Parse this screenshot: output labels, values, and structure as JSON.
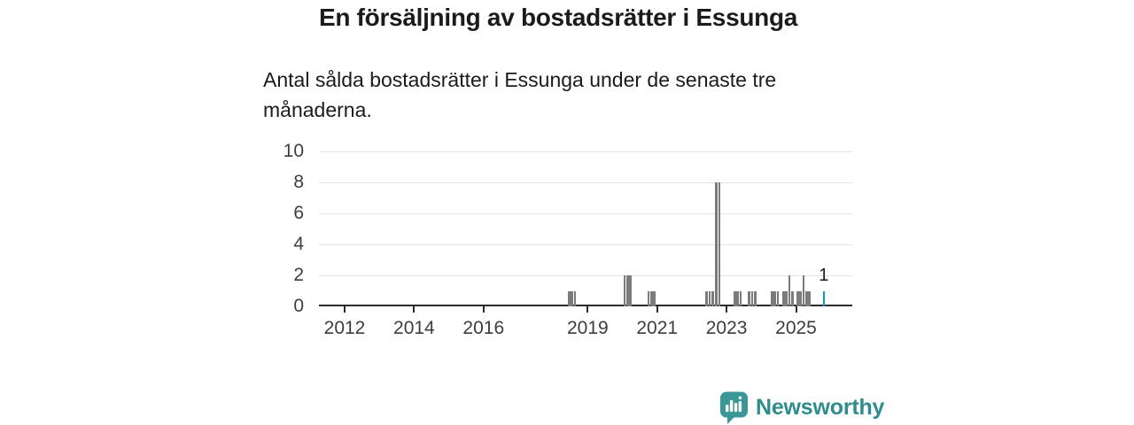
{
  "header": {
    "title": "En försäljning av bostadsrätter i Essunga",
    "subtitle": "Antal sålda bostadsrätter i Essunga under de senaste tre månaderna.",
    "subtitle_lines": [
      "Antal sålda bostadsrätter i Essunga under de senaste tre",
      "månaderna."
    ]
  },
  "branding": {
    "name": "Newsworthy",
    "icon": "newsworthy-speech-bubble-chart-icon",
    "text_color": "#2e8c8c",
    "icon_color": "#3a9797"
  },
  "chart_data": {
    "type": "bar",
    "title": "En försäljning av bostadsrätter i Essunga",
    "subtitle": "Antal sålda bostadsrätter i Essunga under de senaste tre månaderna.",
    "xlabel": "",
    "ylabel": "",
    "x_domain": [
      2011.26,
      2026.62
    ],
    "ylim": [
      0,
      10
    ],
    "y_ticks": [
      0,
      2,
      4,
      6,
      8,
      10
    ],
    "x_ticks": [
      2012,
      2014,
      2016,
      2019,
      2021,
      2023,
      2025
    ],
    "grid": true,
    "legend": "none",
    "bar_color": "#7b7b7b",
    "accent_color": "#00a6ac",
    "axis_color": "#2b2b2b",
    "grid_color": "#e3e3e3",
    "annotation": {
      "label": "1",
      "x": 2025.8,
      "value": 1
    },
    "bars": [
      {
        "x": 2018.46,
        "v": 1
      },
      {
        "x": 2018.545,
        "v": 1
      },
      {
        "x": 2018.63,
        "v": 1
      },
      {
        "x": 2020.065,
        "v": 2
      },
      {
        "x": 2020.15,
        "v": 2
      },
      {
        "x": 2020.235,
        "v": 2
      },
      {
        "x": 2020.75,
        "v": 1
      },
      {
        "x": 2020.835,
        "v": 1
      },
      {
        "x": 2020.92,
        "v": 1
      },
      {
        "x": 2022.43,
        "v": 1
      },
      {
        "x": 2022.515,
        "v": 1
      },
      {
        "x": 2022.6,
        "v": 1
      },
      {
        "x": 2022.71,
        "v": 8
      },
      {
        "x": 2022.795,
        "v": 8
      },
      {
        "x": 2023.235,
        "v": 1
      },
      {
        "x": 2023.32,
        "v": 1
      },
      {
        "x": 2023.405,
        "v": 1
      },
      {
        "x": 2023.655,
        "v": 1
      },
      {
        "x": 2023.74,
        "v": 1
      },
      {
        "x": 2023.825,
        "v": 1
      },
      {
        "x": 2024.31,
        "v": 1
      },
      {
        "x": 2024.395,
        "v": 1
      },
      {
        "x": 2024.48,
        "v": 1
      },
      {
        "x": 2024.64,
        "v": 1
      },
      {
        "x": 2024.725,
        "v": 1
      },
      {
        "x": 2024.81,
        "v": 2
      },
      {
        "x": 2024.895,
        "v": 1
      },
      {
        "x": 2025.05,
        "v": 1
      },
      {
        "x": 2025.135,
        "v": 1
      },
      {
        "x": 2025.22,
        "v": 2
      },
      {
        "x": 2025.305,
        "v": 1
      },
      {
        "x": 2025.39,
        "v": 1
      },
      {
        "x": 2025.8,
        "v": 1,
        "accent": true,
        "label": "1"
      }
    ]
  }
}
